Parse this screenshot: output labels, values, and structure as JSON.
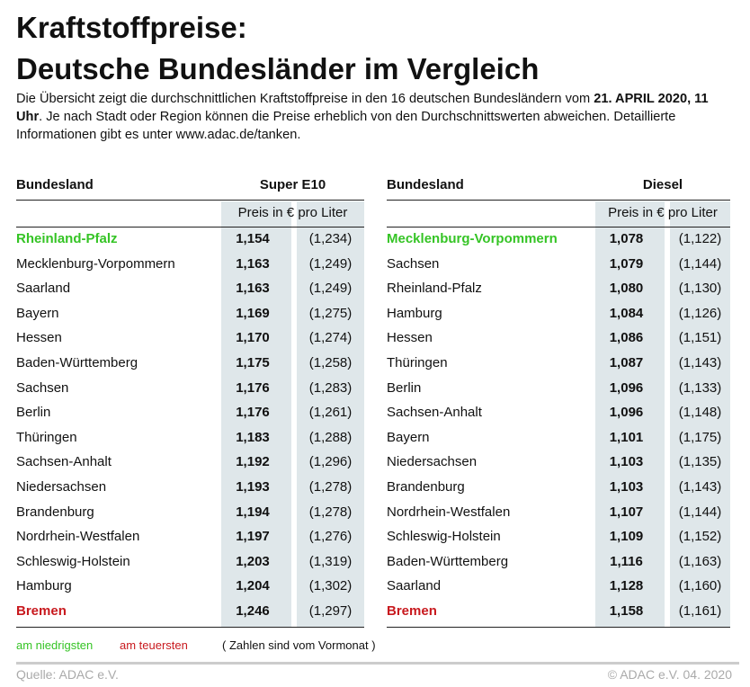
{
  "header": {
    "title_line1": "Kraftstoffpreise:",
    "title_line2": "Deutsche Bundesländer im Vergleich",
    "intro_start": "Die Übersicht zeigt die durchschnittlichen Kraftstoffpreise in den 16 deutschen Bundesländern vom ",
    "intro_date": "21. APRIL 2020, 11 Uhr",
    "intro_end": ". Je nach Stadt oder Region können die Preise erheblich von den Durchschnittswerten abweichen. Detaillierte Informationen gibt es unter www.adac.de/tanken."
  },
  "tables": [
    {
      "col_region": "Bundesland",
      "col_fuel": "Super E10",
      "subheader": "Preis in € pro Liter",
      "rows": [
        [
          "Rheinland-Pfalz",
          "1,154",
          "(1,234)"
        ],
        [
          "Mecklenburg-Vorpommern",
          "1,163",
          "(1,249)"
        ],
        [
          "Saarland",
          "1,163",
          "(1,249)"
        ],
        [
          "Bayern",
          "1,169",
          "(1,275)"
        ],
        [
          "Hessen",
          "1,170",
          "(1,274)"
        ],
        [
          "Baden-Württemberg",
          "1,175",
          "(1,258)"
        ],
        [
          "Sachsen",
          "1,176",
          "(1,283)"
        ],
        [
          "Berlin",
          "1,176",
          "(1,261)"
        ],
        [
          "Thüringen",
          "1,183",
          "(1,288)"
        ],
        [
          "Sachsen-Anhalt",
          "1,192",
          "(1,296)"
        ],
        [
          "Niedersachsen",
          "1,193",
          "(1,278)"
        ],
        [
          "Brandenburg",
          "1,194",
          "(1,278)"
        ],
        [
          "Nordrhein-Westfalen",
          "1,197",
          "(1,276)"
        ],
        [
          "Schleswig-Holstein",
          "1,203",
          "(1,319)"
        ],
        [
          "Hamburg",
          "1,204",
          "(1,302)"
        ],
        [
          "Bremen",
          "1,246",
          "(1,297)"
        ]
      ]
    },
    {
      "col_region": "Bundesland",
      "col_fuel": "Diesel",
      "subheader": "Preis in € pro Liter",
      "rows": [
        [
          "Mecklenburg-Vorpommern",
          "1,078",
          "(1,122)"
        ],
        [
          "Sachsen",
          "1,079",
          "(1,144)"
        ],
        [
          "Rheinland-Pfalz",
          "1,080",
          "(1,130)"
        ],
        [
          "Hamburg",
          "1,084",
          "(1,126)"
        ],
        [
          "Hessen",
          "1,086",
          "(1,151)"
        ],
        [
          "Thüringen",
          "1,087",
          "(1,143)"
        ],
        [
          "Berlin",
          "1,096",
          "(1,133)"
        ],
        [
          "Sachsen-Anhalt",
          "1,096",
          "(1,148)"
        ],
        [
          "Bayern",
          "1,101",
          "(1,175)"
        ],
        [
          "Niedersachsen",
          "1,103",
          "(1,135)"
        ],
        [
          "Brandenburg",
          "1,103",
          "(1,143)"
        ],
        [
          "Nordrhein-Westfalen",
          "1,107",
          "(1,144)"
        ],
        [
          "Schleswig-Holstein",
          "1,109",
          "(1,152)"
        ],
        [
          "Baden-Württemberg",
          "1,116",
          "(1,163)"
        ],
        [
          "Saarland",
          "1,128",
          "(1,160)"
        ],
        [
          "Bremen",
          "1,158",
          "(1,161)"
        ]
      ]
    }
  ],
  "legend": {
    "lowest": "am niedrigsten",
    "highest": "am teuersten",
    "note": "( Zahlen sind vom Vormonat )"
  },
  "footer": {
    "source": "Quelle: ADAC e.V.",
    "copyright": "© ADAC e.V. 04. 2020"
  }
}
